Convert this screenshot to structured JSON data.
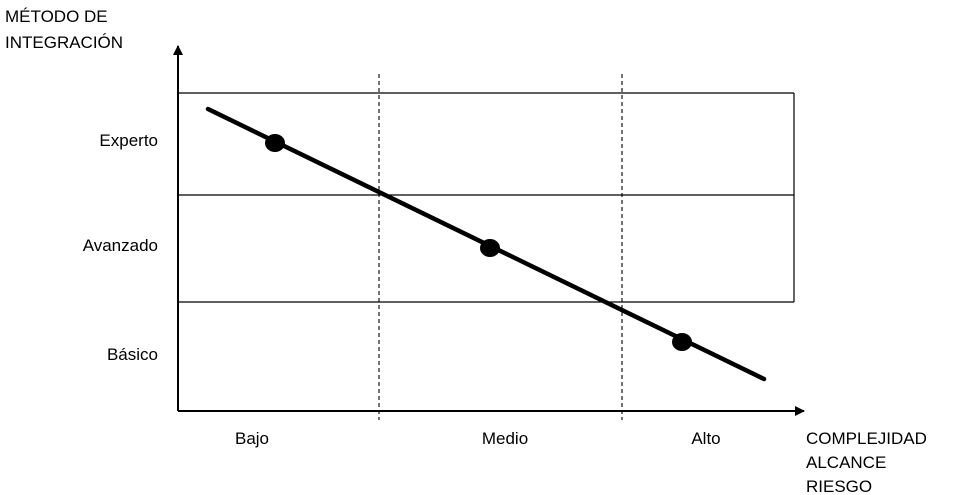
{
  "chart_data": {
    "type": "line",
    "y_axis_label_lines": [
      "MÉTODO DE",
      "INTEGRACIÓN"
    ],
    "x_axis_label_lines": [
      "COMPLEJIDAD",
      "ALCANCE",
      "RIESGO"
    ],
    "y_categories": [
      "Experto",
      "Avanzado",
      "Básico"
    ],
    "x_categories": [
      "Bajo",
      "Medio",
      "Alto"
    ],
    "line_start": [
      "Bajo",
      "Experto"
    ],
    "line_end": [
      "Alto",
      "Básico"
    ],
    "points": [
      {
        "x": "Bajo",
        "y": "Experto"
      },
      {
        "x": "Medio",
        "y": "Avanzado"
      },
      {
        "x": "Alto",
        "y": "Básico"
      }
    ],
    "grid": true,
    "colors": {
      "line": "#000000",
      "grid": "#000000",
      "background": "#ffffff"
    }
  }
}
